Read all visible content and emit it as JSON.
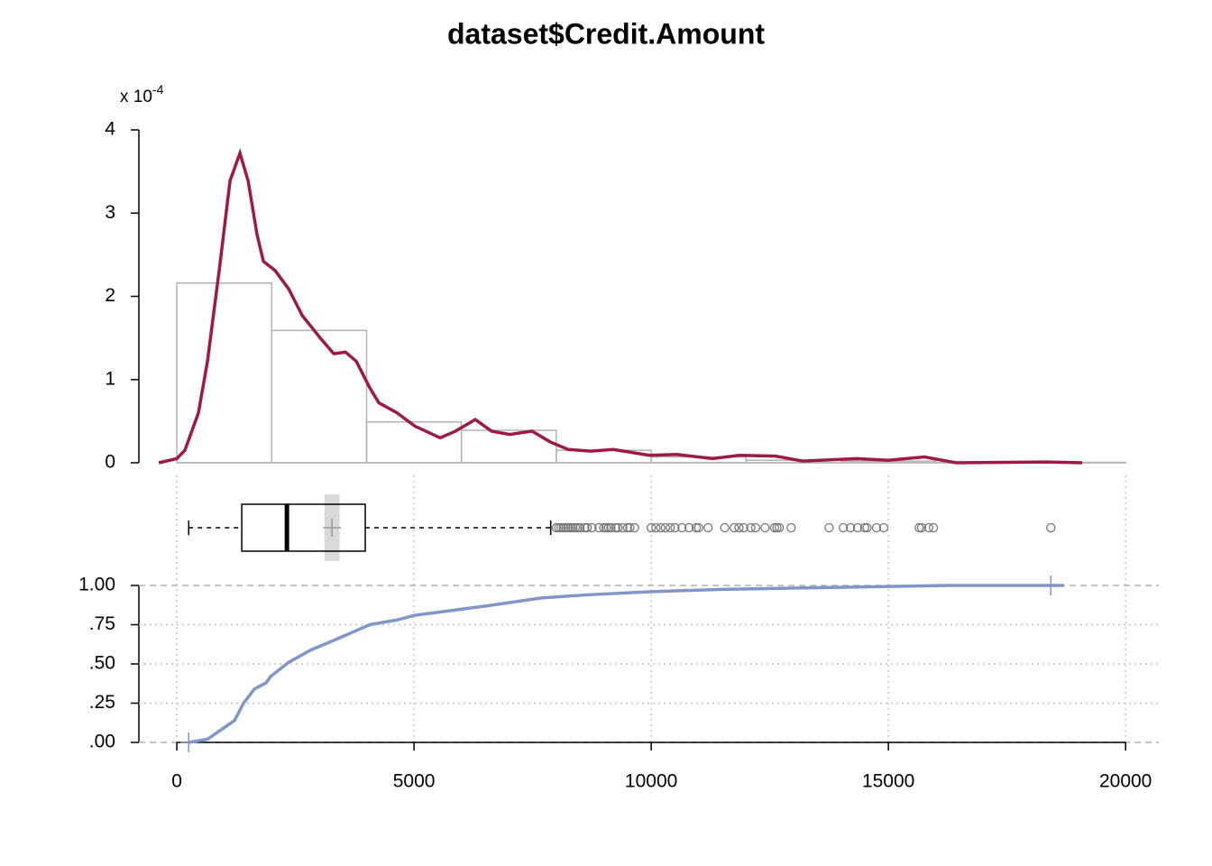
{
  "chart_data": [
    {
      "type": "histogram",
      "title": "dataset$Credit.Amount",
      "y_multiplier": {
        "base": "x 10",
        "exponent": "-4"
      },
      "bins": [
        0,
        2000,
        4000,
        6000,
        8000,
        10000,
        12000,
        14000,
        16000,
        18000,
        20000
      ],
      "values": [
        2.16,
        1.59,
        0.49,
        0.39,
        0.15,
        0.07,
        0.03,
        0.02,
        0.005,
        0.005
      ],
      "color": "#b3b3b3",
      "ylim": [
        0,
        4
      ],
      "yticks": [
        0,
        1,
        2,
        3,
        4
      ],
      "density": {
        "color": "#9e1a46",
        "x": [
          -380,
          0,
          170,
          456,
          646,
          893,
          1122,
          1331,
          1502,
          1692,
          1825,
          2072,
          2357,
          2643,
          3023,
          3308,
          3555,
          3783,
          4068,
          4259,
          4639,
          5019,
          5551,
          5875,
          6293,
          6635,
          7015,
          7490,
          7871,
          8251,
          8726,
          9202,
          9962,
          10532,
          11293,
          11863,
          12624,
          13194,
          14335,
          15000,
          15760,
          16426,
          18327,
          19087
        ],
        "y": [
          0,
          0.05,
          0.15,
          0.6,
          1.22,
          2.31,
          3.39,
          3.72,
          3.39,
          2.74,
          2.42,
          2.31,
          2.09,
          1.77,
          1.5,
          1.31,
          1.33,
          1.22,
          0.9,
          0.72,
          0.6,
          0.44,
          0.3,
          0.38,
          0.52,
          0.38,
          0.34,
          0.38,
          0.25,
          0.16,
          0.14,
          0.16,
          0.09,
          0.1,
          0.05,
          0.09,
          0.08,
          0.02,
          0.05,
          0.03,
          0.07,
          0,
          0.01,
          0
        ]
      }
    },
    {
      "type": "box",
      "color": "#000000",
      "mean_color": "#999999",
      "ci_color": "#d9d9d9",
      "outlier_color": "#777777",
      "whisker_low": 250,
      "q1": 1369,
      "median": 2320,
      "q3": 3972,
      "whisker_high": 7882,
      "mean": 3271,
      "mean_ci": [
        3111,
        3431
      ],
      "outliers": [
        8000,
        8050,
        8100,
        8150,
        8200,
        8250,
        8300,
        8350,
        8400,
        8450,
        8500,
        8600,
        8650,
        8750,
        8900,
        9000,
        9050,
        9100,
        9150,
        9250,
        9300,
        9400,
        9500,
        9550,
        9650,
        10000,
        10100,
        10200,
        10300,
        10400,
        10500,
        10650,
        10800,
        10950,
        11000,
        11200,
        11550,
        11750,
        11850,
        11950,
        12100,
        12200,
        12400,
        12600,
        12650,
        12700,
        12950,
        13750,
        14050,
        14200,
        14350,
        14500,
        14550,
        14750,
        14900,
        15650,
        15700,
        15850,
        15950,
        18424
      ]
    },
    {
      "type": "ecdf",
      "color": "#8096c8",
      "grid": true,
      "x": [
        250,
        646,
        836,
        1217,
        1407,
        1635,
        1882,
        1977,
        2357,
        2833,
        3308,
        3688,
        4068,
        4639,
        5019,
        5779,
        6540,
        7681,
        8631,
        9962,
        11483,
        13384,
        15285,
        16236,
        18424,
        18700
      ],
      "y": [
        0,
        0.02,
        0.06,
        0.14,
        0.25,
        0.34,
        0.38,
        0.42,
        0.51,
        0.59,
        0.65,
        0.7,
        0.75,
        0.78,
        0.81,
        0.84,
        0.87,
        0.92,
        0.94,
        0.96,
        0.975,
        0.985,
        0.995,
        1,
        1,
        1
      ],
      "xlim": [
        -800,
        20700
      ],
      "xticks": [
        0,
        5000,
        10000,
        15000,
        20000
      ],
      "ylim": [
        0,
        1
      ],
      "yticks": [
        {
          "value": 0,
          "label": ".00"
        },
        {
          "value": 0.25,
          "label": ".25"
        },
        {
          "value": 0.5,
          "label": ".50"
        },
        {
          "value": 0.75,
          "label": ".75"
        },
        {
          "value": 1,
          "label": "1.00"
        }
      ]
    }
  ]
}
